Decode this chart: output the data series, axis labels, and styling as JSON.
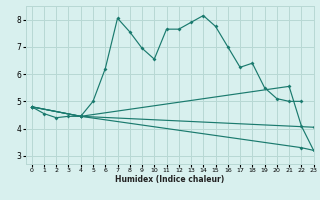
{
  "xlabel": "Humidex (Indice chaleur)",
  "background_color": "#d8f0ee",
  "grid_color": "#b8d8d4",
  "line_color": "#1a7a6e",
  "xlim": [
    -0.5,
    23
  ],
  "ylim": [
    2.7,
    8.5
  ],
  "xticks": [
    0,
    1,
    2,
    3,
    4,
    5,
    6,
    7,
    8,
    9,
    10,
    11,
    12,
    13,
    14,
    15,
    16,
    17,
    18,
    19,
    20,
    21,
    22,
    23
  ],
  "yticks": [
    3,
    4,
    5,
    6,
    7,
    8
  ],
  "main_line": {
    "x": [
      0,
      1,
      2,
      3,
      4,
      5,
      6,
      7,
      8,
      9,
      10,
      11,
      12,
      13,
      14,
      15,
      16,
      17,
      18,
      19,
      20,
      21,
      22
    ],
    "y": [
      4.8,
      4.55,
      4.4,
      4.45,
      4.45,
      5.0,
      6.2,
      8.05,
      7.55,
      6.95,
      6.55,
      7.65,
      7.65,
      7.9,
      8.15,
      7.75,
      7.0,
      6.25,
      6.4,
      5.5,
      5.1,
      5.0,
      5.0
    ]
  },
  "fan_lines": [
    {
      "x": [
        0,
        4,
        23
      ],
      "y": [
        4.8,
        4.45,
        4.05
      ]
    },
    {
      "x": [
        0,
        4,
        21,
        22,
        23
      ],
      "y": [
        4.8,
        4.45,
        5.55,
        4.1,
        3.2
      ]
    },
    {
      "x": [
        0,
        4,
        22,
        23
      ],
      "y": [
        4.8,
        4.45,
        3.3,
        3.2
      ]
    }
  ]
}
